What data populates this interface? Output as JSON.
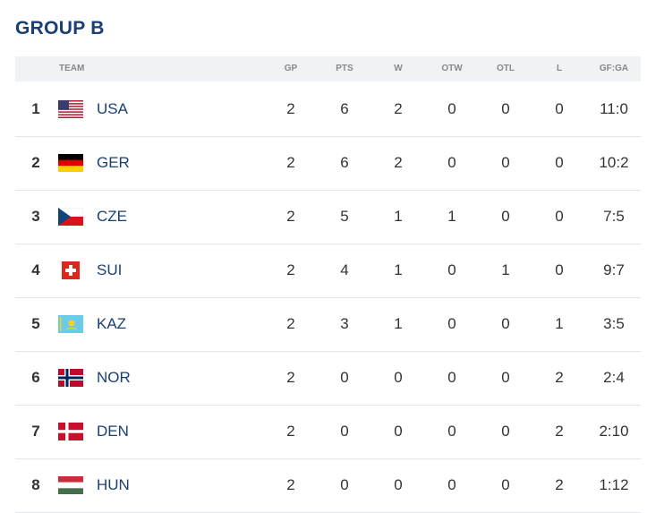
{
  "header": {
    "title": "GROUP B"
  },
  "table": {
    "columns": [
      "TEAM",
      "GP",
      "PTS",
      "W",
      "OTW",
      "OTL",
      "L",
      "GF:GA"
    ],
    "rows": [
      [
        1,
        "USA",
        2,
        6,
        2,
        0,
        0,
        0,
        "11:0"
      ],
      [
        2,
        "GER",
        2,
        6,
        2,
        0,
        0,
        0,
        "10:2"
      ],
      [
        3,
        "CZE",
        2,
        5,
        1,
        1,
        0,
        0,
        "7:5"
      ],
      [
        4,
        "SUI",
        2,
        4,
        1,
        0,
        1,
        0,
        "9:7"
      ],
      [
        5,
        "KAZ",
        2,
        3,
        1,
        0,
        0,
        1,
        "3:5"
      ],
      [
        6,
        "NOR",
        2,
        0,
        0,
        0,
        0,
        2,
        "2:4"
      ],
      [
        7,
        "DEN",
        2,
        0,
        0,
        0,
        0,
        2,
        "2:10"
      ],
      [
        8,
        "HUN",
        2,
        0,
        0,
        0,
        0,
        2,
        "1:12"
      ]
    ]
  }
}
